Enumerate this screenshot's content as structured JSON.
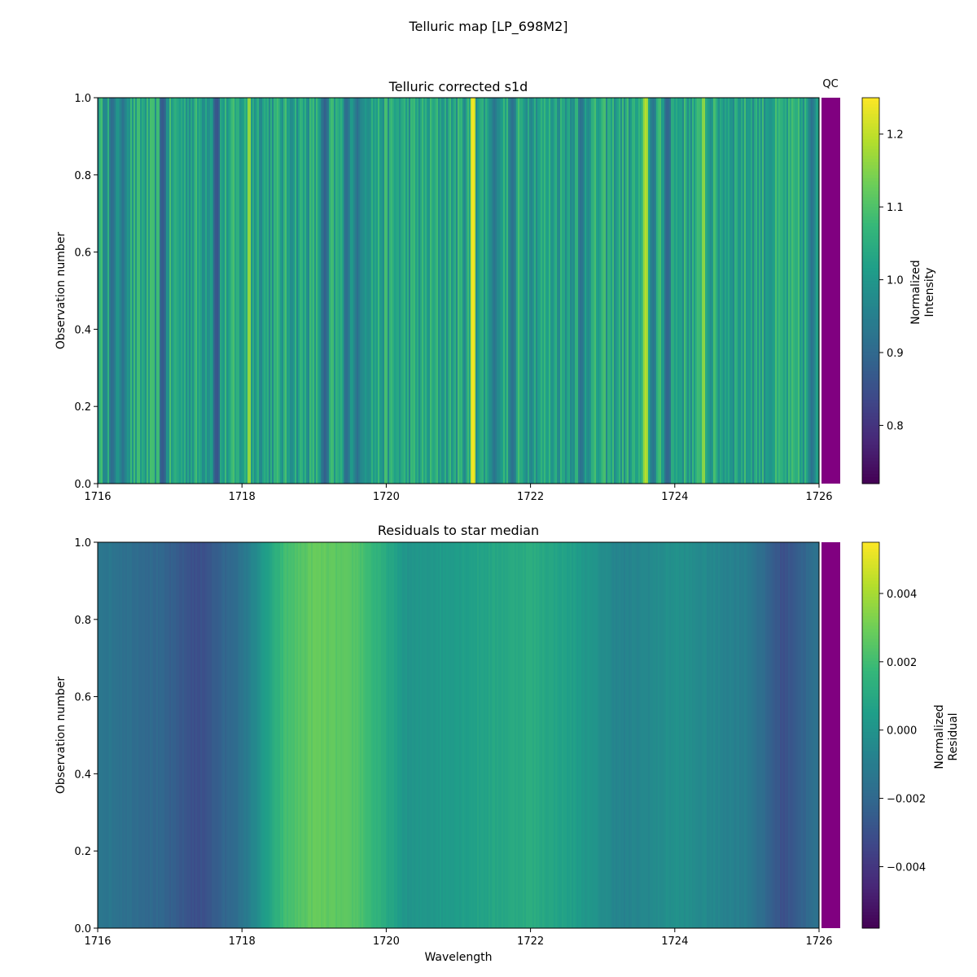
{
  "suptitle": "Telluric map [LP_698M2]",
  "chart_data": [
    {
      "type": "heatmap",
      "title": "Telluric corrected s1d",
      "xlabel": "",
      "ylabel": "Observation number",
      "xlim": [
        1716,
        1726
      ],
      "ylim": [
        0.0,
        1.0
      ],
      "xticks": [
        "1716",
        "1718",
        "1720",
        "1722",
        "1724",
        "1726"
      ],
      "yticks": [
        "0.0",
        "0.2",
        "0.4",
        "0.6",
        "0.8",
        "1.0"
      ],
      "colormap": "viridis",
      "colorbar": {
        "label_line1": "Normalized",
        "label_line2": "Intensity",
        "range": [
          0.72,
          1.25
        ],
        "ticks": [
          "0.8",
          "0.9",
          "1.0",
          "1.1",
          "1.2"
        ]
      },
      "qc_label": "QC",
      "qc_color": "#800080",
      "profile": {
        "wavelength_start": 1716,
        "wavelength_end": 1726,
        "mean_value": 1.03,
        "absorption_lines": [
          {
            "w": 1716.2,
            "v": 0.9
          },
          {
            "w": 1716.35,
            "v": 0.92
          },
          {
            "w": 1716.9,
            "v": 0.86
          },
          {
            "w": 1717.65,
            "v": 0.85
          },
          {
            "w": 1719.15,
            "v": 0.88
          },
          {
            "w": 1719.45,
            "v": 0.9
          },
          {
            "w": 1719.6,
            "v": 0.91
          },
          {
            "w": 1721.5,
            "v": 0.92
          },
          {
            "w": 1721.75,
            "v": 0.91
          },
          {
            "w": 1722.7,
            "v": 0.91
          },
          {
            "w": 1723.7,
            "v": 0.92
          },
          {
            "w": 1723.9,
            "v": 0.88
          },
          {
            "w": 1725.9,
            "v": 0.92
          }
        ],
        "emission_lines": [
          {
            "w": 1718.1,
            "v": 1.18
          },
          {
            "w": 1721.2,
            "v": 1.25
          },
          {
            "w": 1723.6,
            "v": 1.2
          },
          {
            "w": 1724.4,
            "v": 1.17
          }
        ]
      }
    },
    {
      "type": "heatmap",
      "title": "Residuals to star median",
      "xlabel": "Wavelength",
      "ylabel": "Observation number",
      "xlim": [
        1716,
        1726
      ],
      "ylim": [
        0.0,
        1.0
      ],
      "xticks": [
        "1716",
        "1718",
        "1720",
        "1722",
        "1724",
        "1726"
      ],
      "yticks": [
        "0.0",
        "0.2",
        "0.4",
        "0.6",
        "0.8",
        "1.0"
      ],
      "colormap": "viridis",
      "colorbar": {
        "label_line1": "Normalized",
        "label_line2": "Residual",
        "range": [
          -0.0058,
          0.0055
        ],
        "ticks": [
          "−0.004",
          "−0.002",
          "0.000",
          "0.002",
          "0.004"
        ],
        "tick_values": [
          -0.004,
          -0.002,
          0.0,
          0.002,
          0.004
        ]
      },
      "qc_color": "#800080",
      "profile": {
        "wavelength_start": 1716,
        "wavelength_end": 1726,
        "trend": [
          {
            "w": 1716.0,
            "v": -0.0012
          },
          {
            "w": 1716.8,
            "v": -0.002
          },
          {
            "w": 1717.4,
            "v": -0.0031
          },
          {
            "w": 1718.0,
            "v": -0.0015
          },
          {
            "w": 1718.6,
            "v": 0.002
          },
          {
            "w": 1719.0,
            "v": 0.0028
          },
          {
            "w": 1719.6,
            "v": 0.0024
          },
          {
            "w": 1720.3,
            "v": 0.0
          },
          {
            "w": 1721.0,
            "v": 0.0005
          },
          {
            "w": 1722.0,
            "v": 0.0012
          },
          {
            "w": 1722.6,
            "v": 0.0005
          },
          {
            "w": 1723.3,
            "v": -0.0008
          },
          {
            "w": 1724.0,
            "v": -0.0001
          },
          {
            "w": 1725.0,
            "v": -0.001
          },
          {
            "w": 1725.5,
            "v": -0.003
          },
          {
            "w": 1726.0,
            "v": -0.0015
          }
        ]
      }
    }
  ]
}
